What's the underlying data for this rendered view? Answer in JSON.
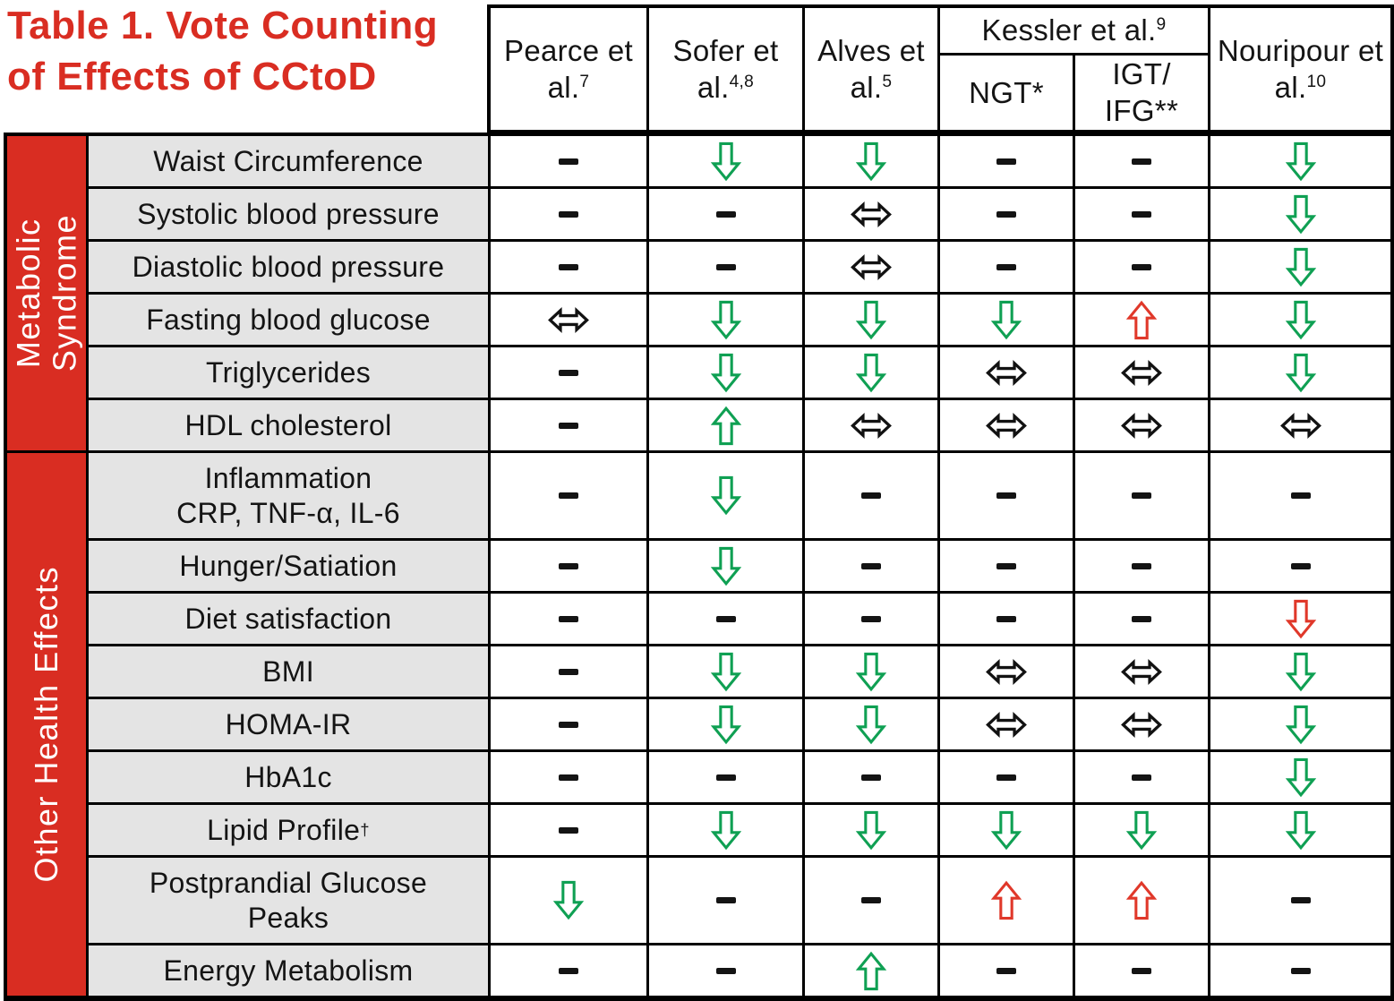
{
  "chart_data": {
    "type": "table",
    "title": "Table 1. Vote Counting of Effects of CCtoD",
    "columns": [
      {
        "name": "Pearce et al.",
        "sup": "7"
      },
      {
        "name": "Sofer et al.",
        "sup": "4,8"
      },
      {
        "name": "Alves et al.",
        "sup": "5"
      },
      {
        "name": "Kessler et al.",
        "sup": "9",
        "subcolumns": [
          "NGT*",
          "IGT/\nIFG**"
        ]
      },
      {
        "name": "Nouripour et al.",
        "sup": "10"
      }
    ],
    "icons": {
      "dash": {
        "icon": "not-reported-dash-icon",
        "glyph": "–",
        "color": "#141414"
      },
      "down": {
        "icon": "decrease-arrow-icon",
        "glyph": "⇩",
        "color": "#0FA053"
      },
      "up": {
        "icon": "increase-arrow-icon",
        "glyph": "⇧",
        "color": "#0FA053"
      },
      "down-red": {
        "icon": "decrease-arrow-icon",
        "glyph": "⇩",
        "color": "#E0382A"
      },
      "up-red": {
        "icon": "increase-arrow-icon",
        "glyph": "⇧",
        "color": "#E0382A"
      },
      "both": {
        "icon": "no-change-arrow-icon",
        "glyph": "⇔",
        "color": "#121212"
      }
    },
    "row_groups": [
      {
        "label": "Metabolic\nSyndrome",
        "rows": [
          {
            "label": "Waist Circumference",
            "sup": "",
            "cells": [
              "dash",
              "down",
              "down",
              "dash",
              "dash",
              "down"
            ]
          },
          {
            "label": "Systolic blood pressure",
            "sup": "",
            "cells": [
              "dash",
              "dash",
              "both",
              "dash",
              "dash",
              "down"
            ]
          },
          {
            "label": "Diastolic blood pressure",
            "sup": "",
            "cells": [
              "dash",
              "dash",
              "both",
              "dash",
              "dash",
              "down"
            ]
          },
          {
            "label": "Fasting blood glucose",
            "sup": "",
            "cells": [
              "both",
              "down",
              "down",
              "down",
              "up-red",
              "down"
            ]
          },
          {
            "label": "Triglycerides",
            "sup": "",
            "cells": [
              "dash",
              "down",
              "down",
              "both",
              "both",
              "down"
            ]
          },
          {
            "label": "HDL cholesterol",
            "sup": "",
            "cells": [
              "dash",
              "up",
              "both",
              "both",
              "both",
              "both"
            ]
          }
        ]
      },
      {
        "label": "Other Health Effects",
        "rows": [
          {
            "label": "Inflammation\nCRP, TNF-α, IL-6",
            "sup": "",
            "cells": [
              "dash",
              "down",
              "dash",
              "dash",
              "dash",
              "dash"
            ]
          },
          {
            "label": "Hunger/Satiation",
            "sup": "",
            "cells": [
              "dash",
              "down",
              "dash",
              "dash",
              "dash",
              "dash"
            ]
          },
          {
            "label": "Diet satisfaction",
            "sup": "",
            "cells": [
              "dash",
              "dash",
              "dash",
              "dash",
              "dash",
              "down-red"
            ]
          },
          {
            "label": "BMI",
            "sup": "",
            "cells": [
              "dash",
              "down",
              "down",
              "both",
              "both",
              "down"
            ]
          },
          {
            "label": "HOMA-IR",
            "sup": "",
            "cells": [
              "dash",
              "down",
              "down",
              "both",
              "both",
              "down"
            ]
          },
          {
            "label": "HbA1c",
            "sup": "",
            "cells": [
              "dash",
              "dash",
              "dash",
              "dash",
              "dash",
              "down"
            ]
          },
          {
            "label": "Lipid Profile",
            "sup": "†",
            "cells": [
              "dash",
              "down",
              "down",
              "down",
              "down",
              "down"
            ]
          },
          {
            "label": "Postprandial Glucose\nPeaks",
            "sup": "",
            "cells": [
              "down",
              "dash",
              "dash",
              "up-red",
              "up-red",
              "dash"
            ]
          },
          {
            "label": "Energy Metabolism",
            "sup": "",
            "cells": [
              "dash",
              "dash",
              "up",
              "dash",
              "dash",
              "dash"
            ]
          }
        ]
      }
    ],
    "colors": {
      "accent_red": "#D92D22",
      "label_bg": "#E4E4E4",
      "border": "#000000",
      "text": "#141414"
    }
  }
}
